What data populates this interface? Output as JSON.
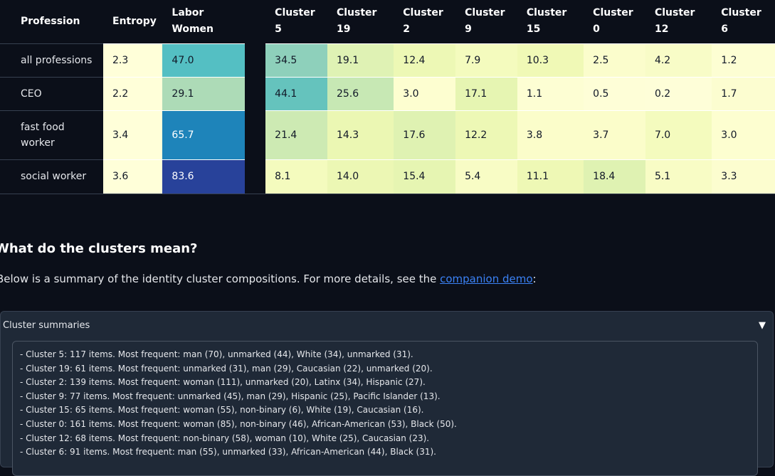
{
  "table": {
    "headers": {
      "profession": "Profession",
      "entropy": "Entropy",
      "labor_line1": "Labor",
      "labor_line2": "Women",
      "clusters": [
        {
          "line1": "Cluster",
          "line2": "5"
        },
        {
          "line1": "Cluster",
          "line2": "19"
        },
        {
          "line1": "Cluster",
          "line2": "2"
        },
        {
          "line1": "Cluster",
          "line2": "9"
        },
        {
          "line1": "Cluster",
          "line2": "15"
        },
        {
          "line1": "Cluster",
          "line2": "0"
        },
        {
          "line1": "Cluster",
          "line2": "12"
        },
        {
          "line1": "Cluster",
          "line2": "6"
        }
      ]
    },
    "rows": [
      {
        "profession": "all professions",
        "entropy": "2.3",
        "labor_women": "47.0",
        "clusters": [
          "34.5",
          "19.1",
          "12.4",
          "7.9",
          "10.3",
          "2.5",
          "4.2",
          "1.2"
        ]
      },
      {
        "profession": "CEO",
        "entropy": "2.2",
        "labor_women": "29.1",
        "clusters": [
          "44.1",
          "25.6",
          "3.0",
          "17.1",
          "1.1",
          "0.5",
          "0.2",
          "1.7"
        ]
      },
      {
        "profession": "fast food worker",
        "entropy": "3.4",
        "labor_women": "65.7",
        "clusters": [
          "21.4",
          "14.3",
          "17.6",
          "12.2",
          "3.8",
          "3.7",
          "7.0",
          "3.0"
        ]
      },
      {
        "profession": "social worker",
        "entropy": "3.6",
        "labor_women": "83.6",
        "clusters": [
          "8.1",
          "14.0",
          "15.4",
          "5.4",
          "11.1",
          "18.4",
          "5.1",
          "3.3"
        ]
      }
    ],
    "colors": {
      "entropy_bg": "#ffffd9",
      "labor_women": [
        "#54bfc3",
        "#addbb7",
        "#1e84ba",
        "#28429a"
      ],
      "clusters": [
        [
          "#8ed0bb",
          "#dff2b4",
          "#edf8b5",
          "#f4fbbe",
          "#f0f9b6",
          "#fbfdcc",
          "#f8fcc7",
          "#fdfed3"
        ],
        [
          "#65c3bd",
          "#c7e8b4",
          "#fdfed0",
          "#e6f5b2",
          "#fdfed3",
          "#fefed7",
          "#fefed8",
          "#fcfdd0"
        ],
        [
          "#cdeab3",
          "#ebf7b3",
          "#dff2b2",
          "#edf8b5",
          "#fbfdca",
          "#fbfdca",
          "#f4fbbe",
          "#fdfed0"
        ],
        [
          "#f4fbbe",
          "#ecf7b4",
          "#e6f5b2",
          "#f8fcc5",
          "#eef8b5",
          "#dff2b2",
          "#f8fcc5",
          "#fcfdcf"
        ]
      ]
    }
  },
  "section": {
    "title": "What do the clusters mean?",
    "text_before": "Below is a summary of the identity cluster compositions. For more details, see the ",
    "link_text": "companion demo",
    "text_after": ":"
  },
  "accordion": {
    "label": "Cluster summaries",
    "arrow": "▼",
    "lines": [
      "- Cluster 5: 117 items. Most frequent: man (70), unmarked (44), White (34), unmarked (31).",
      "- Cluster 19: 61 items. Most frequent: unmarked (31), man (29), Caucasian (22), unmarked (20).",
      "- Cluster 2: 139 items. Most frequent: woman (111), unmarked (20), Latinx (34), Hispanic (27).",
      "- Cluster 9: 77 items. Most frequent: unmarked (45), man (29), Hispanic (25), Pacific Islander (13).",
      "- Cluster 15: 65 items. Most frequent: woman (55), non-binary (6), White (19), Caucasian (16).",
      "- Cluster 0: 161 items. Most frequent: woman (85), non-binary (46), African-American (53), Black (50).",
      "- Cluster 12: 68 items. Most frequent: non-binary (58), woman (10), White (25), Caucasian (23).",
      "- Cluster 6: 91 items. Most frequent: man (55), unmarked (33), African-American (44), Black (31)."
    ]
  }
}
